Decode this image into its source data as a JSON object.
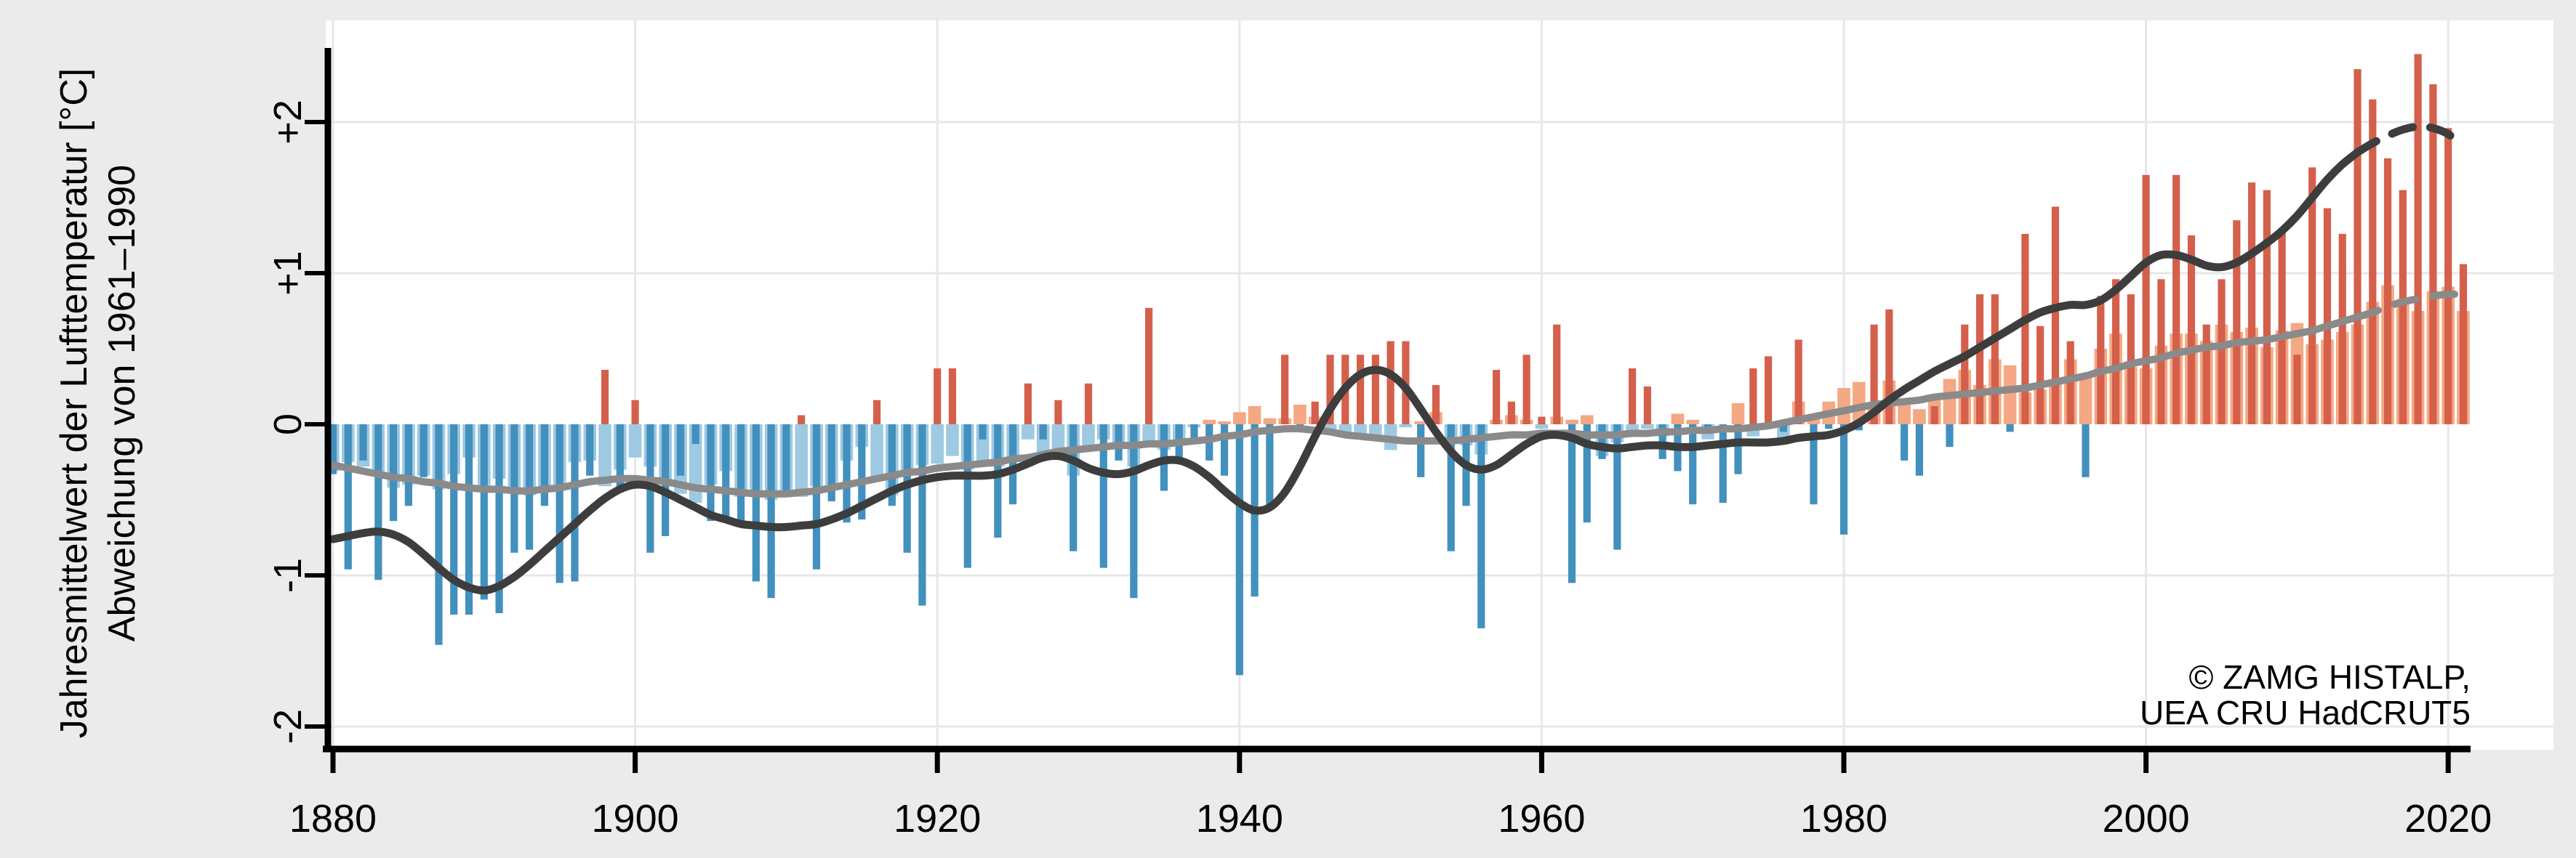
{
  "y_axis": {
    "title_line1": "Jahresmittelwert der Lufttemperatur [°C]",
    "title_line2": "Abweichung von 1961–1990",
    "tick_labels": [
      "+2",
      "+1",
      "0",
      "-1",
      "-2"
    ],
    "tick_values": [
      2,
      1,
      0,
      -1,
      -2
    ]
  },
  "x_axis": {
    "tick_labels": [
      "1880",
      "1900",
      "1920",
      "1940",
      "1960",
      "1980",
      "2000",
      "2020"
    ],
    "tick_values": [
      1880,
      1900,
      1920,
      1940,
      1960,
      1980,
      2000,
      2020
    ]
  },
  "attribution": {
    "line1": "© ZAMG HISTALP,",
    "line2": "UEA CRU HadCRUT5"
  },
  "colors": {
    "background": "#ebebeb",
    "panel": "#ffffff",
    "grid": "#e7e7e7",
    "axis": "#000000",
    "bar_pos_annual": "#d4604c",
    "bar_neg_annual": "#4290be",
    "bar_pos_wide": "#f4a883",
    "bar_neg_wide": "#9ec9e2",
    "line_dark": "#3d3d3d",
    "line_gray": "#8a8a8a"
  },
  "chart_data": {
    "type": "bar",
    "title": "",
    "xlabel": "",
    "ylabel": "Jahresmittelwert der Lufttemperatur [°C] Abweichung von 1961–1990",
    "ylim": [
      -2.15,
      2.67
    ],
    "xlim": [
      1879.5,
      2022
    ],
    "grid": true,
    "legend": false,
    "smoothed_dashed_from": 2014,
    "years": [
      1880,
      1881,
      1882,
      1883,
      1884,
      1885,
      1886,
      1887,
      1888,
      1889,
      1890,
      1891,
      1892,
      1893,
      1894,
      1895,
      1896,
      1897,
      1898,
      1899,
      1900,
      1901,
      1902,
      1903,
      1904,
      1905,
      1906,
      1907,
      1908,
      1909,
      1910,
      1911,
      1912,
      1913,
      1914,
      1915,
      1916,
      1917,
      1918,
      1919,
      1920,
      1921,
      1922,
      1923,
      1924,
      1925,
      1926,
      1927,
      1928,
      1929,
      1930,
      1931,
      1932,
      1933,
      1934,
      1935,
      1936,
      1937,
      1938,
      1939,
      1940,
      1941,
      1942,
      1943,
      1944,
      1945,
      1946,
      1947,
      1948,
      1949,
      1950,
      1951,
      1952,
      1953,
      1954,
      1955,
      1956,
      1957,
      1958,
      1959,
      1960,
      1961,
      1962,
      1963,
      1964,
      1965,
      1966,
      1967,
      1968,
      1969,
      1970,
      1971,
      1972,
      1973,
      1974,
      1975,
      1976,
      1977,
      1978,
      1979,
      1980,
      1981,
      1982,
      1983,
      1984,
      1985,
      1986,
      1987,
      1988,
      1989,
      1990,
      1991,
      1992,
      1993,
      1994,
      1995,
      1996,
      1997,
      1998,
      1999,
      2000,
      2001,
      2002,
      2003,
      2004,
      2005,
      2006,
      2007,
      2008,
      2009,
      2010,
      2011,
      2012,
      2013,
      2014,
      2015,
      2016,
      2017,
      2018,
      2019,
      2020,
      2021
    ],
    "series": [
      {
        "name": "annual-anomaly-narrow-bars",
        "style": "narrow-bar",
        "values": [
          -0.33,
          -0.96,
          -0.24,
          -1.03,
          -0.64,
          -0.54,
          -0.35,
          -1.46,
          -1.26,
          -1.26,
          -1.16,
          -1.25,
          -0.85,
          -0.83,
          -0.54,
          -1.05,
          -1.04,
          -0.34,
          0.36,
          -0.45,
          0.16,
          -0.85,
          -0.74,
          -0.34,
          -0.13,
          -0.64,
          -0.64,
          -0.68,
          -1.04,
          -1.15,
          -0.45,
          0.06,
          -0.96,
          -0.51,
          -0.65,
          -0.63,
          0.16,
          -0.54,
          -0.85,
          -1.2,
          0.37,
          0.37,
          -0.95,
          -0.1,
          -0.75,
          -0.53,
          0.27,
          -0.1,
          0.16,
          -0.84,
          0.27,
          -0.95,
          -0.24,
          -1.15,
          0.77,
          -0.44,
          -0.24,
          -0.1,
          -0.24,
          -0.34,
          -1.66,
          -1.14,
          -0.54,
          0.46,
          -0.05,
          0.15,
          0.46,
          0.46,
          0.46,
          0.46,
          0.55,
          0.55,
          -0.35,
          0.26,
          -0.84,
          -0.54,
          -1.35,
          0.36,
          0.15,
          0.46,
          0.05,
          0.66,
          -1.05,
          -0.65,
          -0.23,
          -0.83,
          0.37,
          0.25,
          -0.23,
          -0.31,
          -0.53,
          -0.05,
          -0.52,
          -0.33,
          0.37,
          0.45,
          -0.05,
          0.56,
          -0.53,
          -0.03,
          -0.73,
          -0.04,
          0.66,
          0.76,
          -0.24,
          -0.34,
          0.12,
          -0.15,
          0.66,
          0.86,
          0.86,
          -0.05,
          1.26,
          0.65,
          1.44,
          0.55,
          -0.35,
          0.85,
          0.96,
          0.86,
          1.65,
          0.96,
          1.65,
          1.25,
          0.66,
          0.96,
          1.35,
          1.6,
          1.55,
          1.3,
          0.46,
          1.7,
          1.43,
          1.26,
          2.35,
          2.15,
          1.76,
          1.55,
          2.45,
          2.25,
          1.96,
          1.06
        ]
      },
      {
        "name": "annual-anomaly-wide-bars",
        "style": "wide-bar",
        "values": [
          -0.31,
          -0.25,
          -0.28,
          -0.33,
          -0.42,
          -0.4,
          -0.34,
          -0.43,
          -0.33,
          -0.22,
          -0.43,
          -0.36,
          -0.46,
          -0.47,
          -0.42,
          -0.4,
          -0.25,
          -0.24,
          -0.41,
          -0.3,
          -0.22,
          -0.28,
          -0.4,
          -0.46,
          -0.52,
          -0.4,
          -0.31,
          -0.48,
          -0.47,
          -0.5,
          -0.47,
          -0.48,
          -0.41,
          -0.4,
          -0.24,
          -0.15,
          -0.37,
          -0.47,
          -0.34,
          -0.27,
          -0.26,
          -0.21,
          -0.3,
          -0.27,
          -0.28,
          -0.22,
          -0.1,
          -0.2,
          -0.19,
          -0.34,
          -0.14,
          -0.1,
          -0.14,
          -0.28,
          -0.13,
          -0.17,
          -0.13,
          -0.02,
          0.03,
          0.02,
          0.08,
          0.12,
          0.04,
          0.04,
          0.13,
          0.05,
          -0.07,
          -0.07,
          -0.08,
          -0.1,
          -0.17,
          -0.02,
          0.02,
          0.08,
          -0.12,
          -0.14,
          -0.2,
          0.03,
          0.06,
          0.03,
          -0.03,
          0.05,
          0.03,
          0.06,
          -0.21,
          -0.12,
          -0.06,
          -0.03,
          -0.08,
          0.07,
          0.03,
          -0.1,
          0.0,
          0.14,
          -0.08,
          -0.02,
          -0.12,
          0.15,
          0.06,
          0.15,
          0.24,
          0.28,
          0.12,
          0.29,
          0.13,
          0.1,
          0.16,
          0.3,
          0.36,
          0.26,
          0.43,
          0.39,
          0.21,
          0.23,
          0.3,
          0.43,
          0.32,
          0.5,
          0.6,
          0.38,
          0.37,
          0.52,
          0.6,
          0.6,
          0.55,
          0.66,
          0.61,
          0.64,
          0.51,
          0.62,
          0.67,
          0.53,
          0.56,
          0.61,
          0.66,
          0.81,
          0.92,
          0.83,
          0.75,
          0.88,
          0.91,
          0.75
        ]
      },
      {
        "name": "smoothed-dark-line",
        "style": "line-dark",
        "values": [
          -0.76,
          -0.74,
          -0.72,
          -0.71,
          -0.73,
          -0.78,
          -0.86,
          -0.95,
          -1.03,
          -1.08,
          -1.1,
          -1.07,
          -1.01,
          -0.93,
          -0.84,
          -0.75,
          -0.66,
          -0.57,
          -0.49,
          -0.43,
          -0.4,
          -0.41,
          -0.45,
          -0.5,
          -0.55,
          -0.6,
          -0.63,
          -0.66,
          -0.67,
          -0.68,
          -0.68,
          -0.67,
          -0.66,
          -0.63,
          -0.59,
          -0.54,
          -0.49,
          -0.44,
          -0.4,
          -0.37,
          -0.35,
          -0.34,
          -0.34,
          -0.34,
          -0.33,
          -0.3,
          -0.26,
          -0.22,
          -0.21,
          -0.24,
          -0.29,
          -0.32,
          -0.33,
          -0.31,
          -0.27,
          -0.24,
          -0.24,
          -0.28,
          -0.35,
          -0.44,
          -0.52,
          -0.57,
          -0.55,
          -0.45,
          -0.28,
          -0.08,
          0.1,
          0.24,
          0.33,
          0.36,
          0.33,
          0.24,
          0.1,
          -0.05,
          -0.18,
          -0.27,
          -0.3,
          -0.27,
          -0.2,
          -0.13,
          -0.08,
          -0.07,
          -0.09,
          -0.13,
          -0.15,
          -0.16,
          -0.15,
          -0.14,
          -0.14,
          -0.15,
          -0.15,
          -0.14,
          -0.13,
          -0.12,
          -0.12,
          -0.12,
          -0.11,
          -0.09,
          -0.08,
          -0.07,
          -0.04,
          0.01,
          0.08,
          0.16,
          0.23,
          0.29,
          0.35,
          0.4,
          0.45,
          0.51,
          0.57,
          0.63,
          0.69,
          0.74,
          0.77,
          0.79,
          0.79,
          0.82,
          0.89,
          0.98,
          1.07,
          1.12,
          1.12,
          1.09,
          1.05,
          1.04,
          1.07,
          1.13,
          1.2,
          1.28,
          1.38,
          1.5,
          1.62,
          1.72,
          1.8,
          1.86,
          1.91,
          1.95,
          1.97,
          1.96,
          1.92,
          1.84
        ]
      },
      {
        "name": "smoothed-gray-line",
        "style": "line-gray",
        "values": [
          -0.27,
          -0.29,
          -0.31,
          -0.33,
          -0.35,
          -0.36,
          -0.38,
          -0.39,
          -0.41,
          -0.42,
          -0.43,
          -0.43,
          -0.44,
          -0.44,
          -0.43,
          -0.42,
          -0.4,
          -0.38,
          -0.37,
          -0.36,
          -0.36,
          -0.37,
          -0.38,
          -0.4,
          -0.42,
          -0.43,
          -0.44,
          -0.45,
          -0.46,
          -0.46,
          -0.46,
          -0.45,
          -0.44,
          -0.42,
          -0.4,
          -0.38,
          -0.36,
          -0.34,
          -0.32,
          -0.31,
          -0.29,
          -0.28,
          -0.27,
          -0.26,
          -0.25,
          -0.23,
          -0.22,
          -0.2,
          -0.18,
          -0.17,
          -0.16,
          -0.15,
          -0.14,
          -0.14,
          -0.13,
          -0.13,
          -0.12,
          -0.11,
          -0.1,
          -0.08,
          -0.07,
          -0.05,
          -0.04,
          -0.03,
          -0.03,
          -0.04,
          -0.05,
          -0.07,
          -0.08,
          -0.09,
          -0.1,
          -0.11,
          -0.11,
          -0.11,
          -0.11,
          -0.1,
          -0.09,
          -0.08,
          -0.07,
          -0.07,
          -0.06,
          -0.06,
          -0.06,
          -0.07,
          -0.07,
          -0.07,
          -0.06,
          -0.06,
          -0.05,
          -0.05,
          -0.04,
          -0.04,
          -0.03,
          -0.03,
          -0.02,
          -0.01,
          0.01,
          0.03,
          0.05,
          0.07,
          0.09,
          0.11,
          0.13,
          0.14,
          0.15,
          0.16,
          0.18,
          0.19,
          0.2,
          0.21,
          0.22,
          0.23,
          0.24,
          0.26,
          0.28,
          0.3,
          0.32,
          0.35,
          0.37,
          0.4,
          0.42,
          0.44,
          0.47,
          0.49,
          0.51,
          0.52,
          0.54,
          0.55,
          0.56,
          0.58,
          0.6,
          0.62,
          0.65,
          0.68,
          0.71,
          0.74,
          0.78,
          0.81,
          0.83,
          0.85,
          0.86,
          0.86
        ]
      }
    ]
  }
}
